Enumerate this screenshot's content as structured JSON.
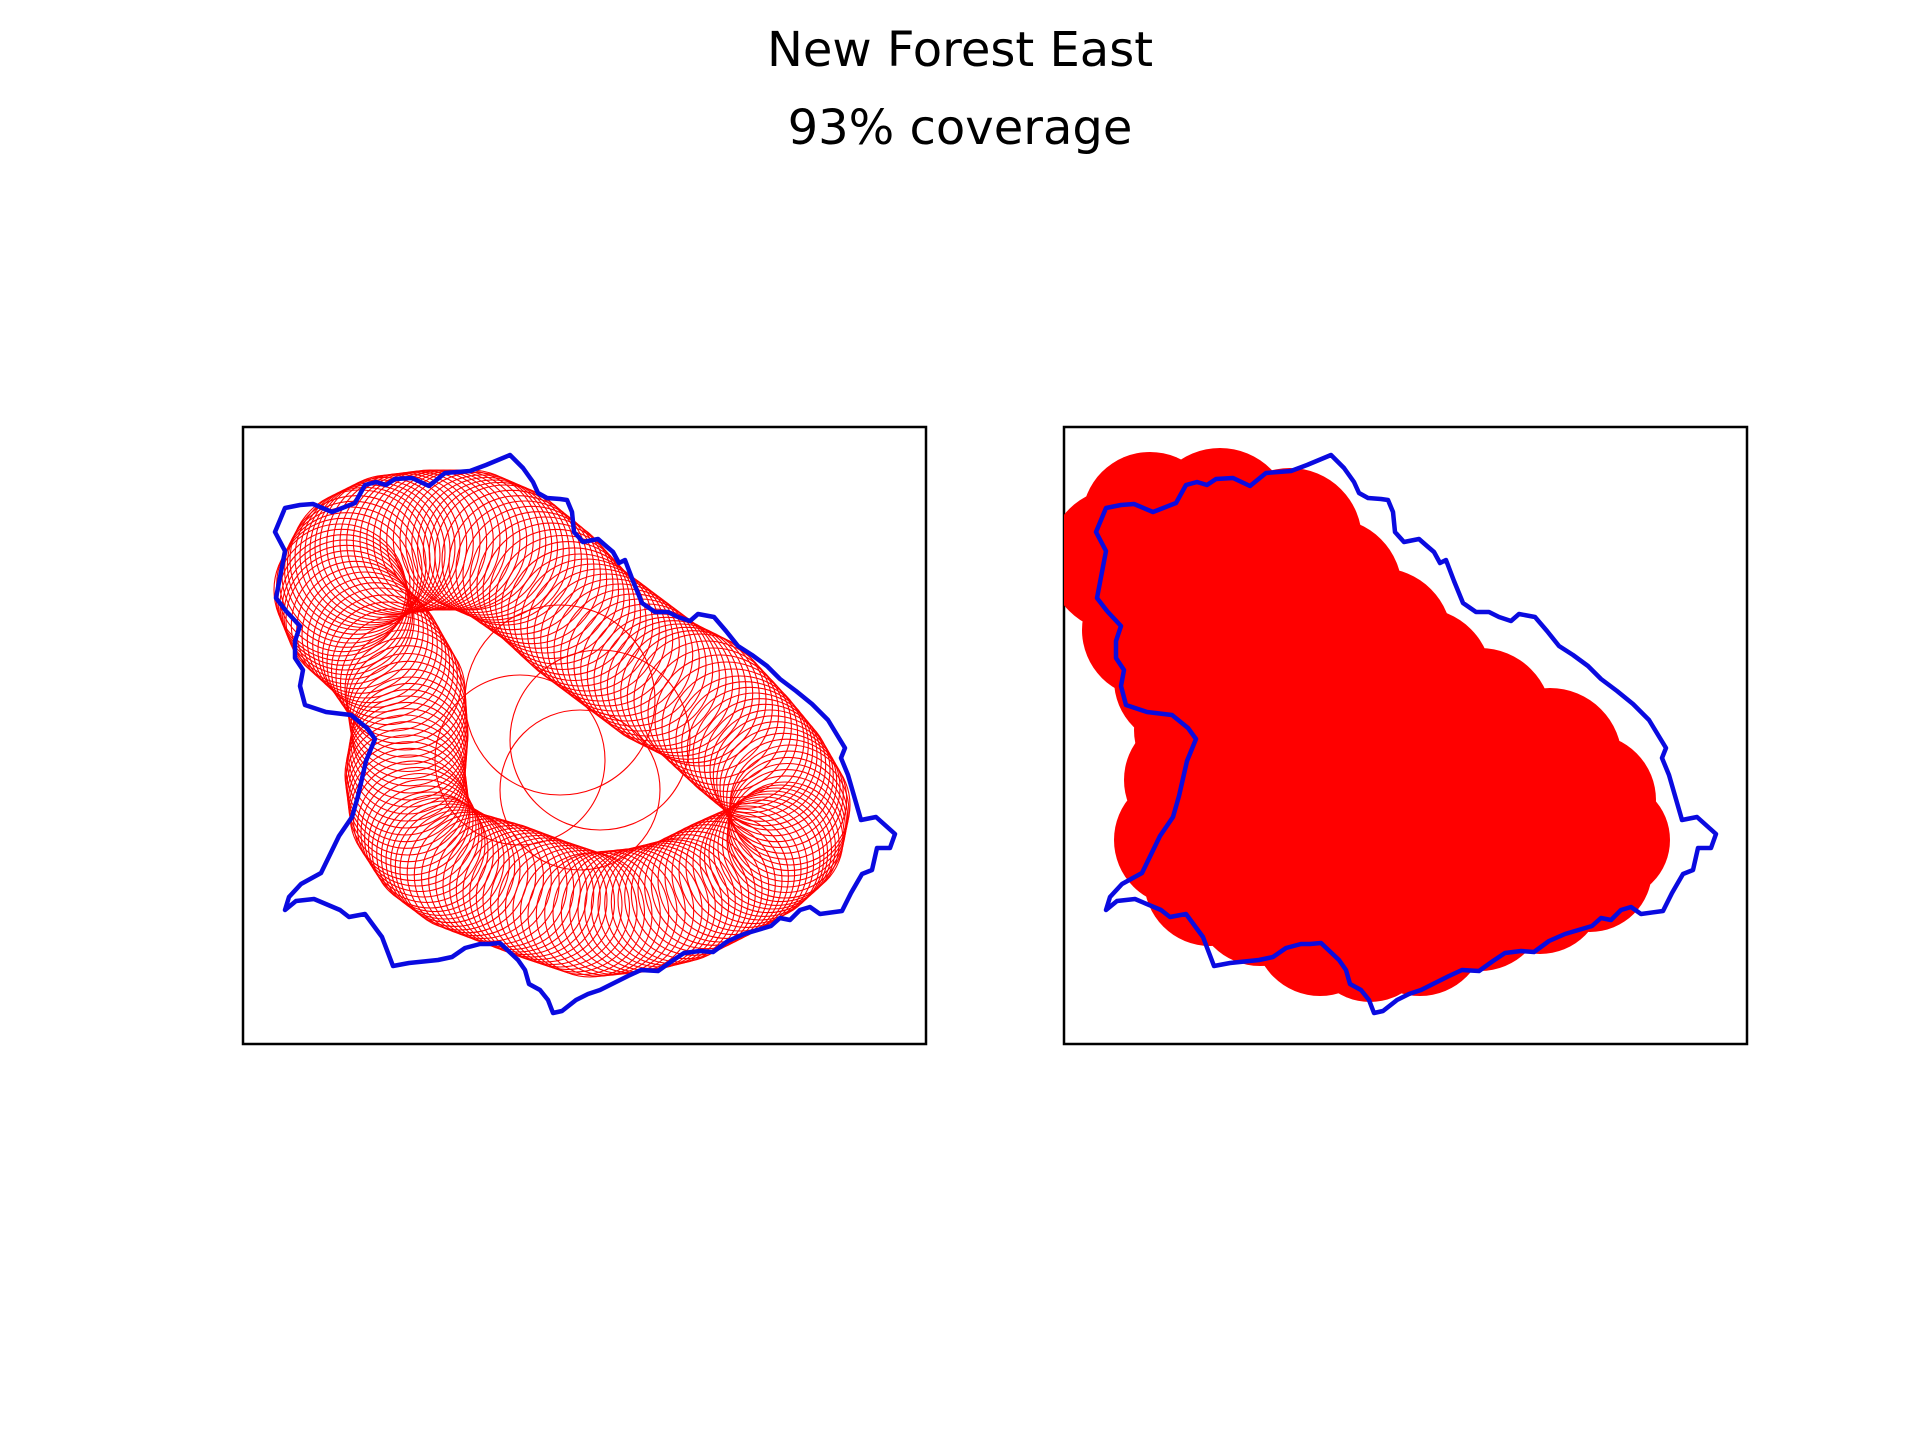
{
  "figure": {
    "title": "New Forest East",
    "subtitle": "93% coverage"
  },
  "colors": {
    "boundary": "#0a0ae0",
    "coverage": "#ff0000",
    "frame": "#000000",
    "background": "#ffffff"
  },
  "panels": [
    {
      "name": "coverage-circles-outline",
      "style": "outline"
    },
    {
      "name": "coverage-union-filled",
      "style": "filled"
    }
  ]
}
